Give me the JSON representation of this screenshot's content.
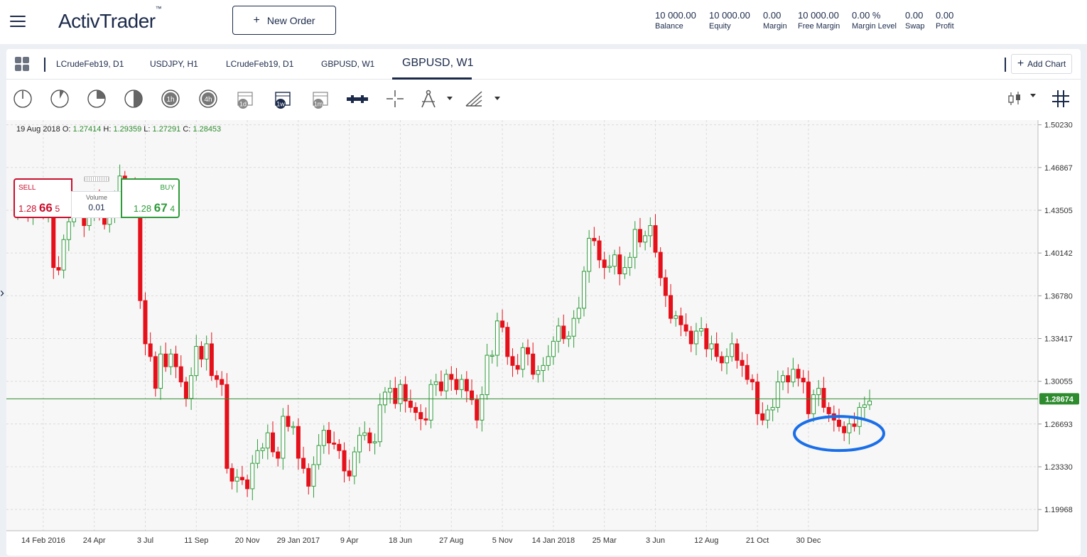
{
  "header": {
    "logo": "ActivTrader",
    "logo_tm": "™",
    "new_order_label": "New Order",
    "stats": [
      {
        "value": "10 000.00",
        "label": "Balance"
      },
      {
        "value": "10 000.00",
        "label": "Equity"
      },
      {
        "value": "0.00",
        "label": "Margin"
      },
      {
        "value": "10 000.00",
        "label": "Free Margin"
      },
      {
        "value": "0.00 %",
        "label": "Margin Level"
      },
      {
        "value": "0.00",
        "label": "Swap"
      },
      {
        "value": "0.00",
        "label": "Profit"
      }
    ]
  },
  "tabs": [
    {
      "label": "LCrudeFeb19, D1"
    },
    {
      "label": "USDJPY, H1"
    },
    {
      "label": "LCrudeFeb19, D1"
    },
    {
      "label": "GBPUSD, W1"
    },
    {
      "label": "GBPUSD, W1",
      "active": true
    }
  ],
  "add_chart_label": "Add Chart",
  "toolbar": {
    "tools": [
      "clock-1-icon",
      "clock-2-icon",
      "clock-3-icon",
      "clock-4-icon",
      "timeframe-1h-icon",
      "timeframe-4h-icon",
      "timeframe-1d-icon",
      "timeframe-1w-icon",
      "timeframe-1m-icon",
      "chart-type-icon",
      "crosshair-icon",
      "compass-draw-icon",
      "fibonacci-icon"
    ],
    "tf_1h": "1h",
    "tf_4h": "4h",
    "tf_1d": "1d",
    "tf_1w": "1w",
    "tf_1m": "1m"
  },
  "ohlc": {
    "date": "19 Aug 2018",
    "o_label": "O:",
    "o": "1.27414",
    "h_label": "H:",
    "h": "1.29359",
    "l_label": "L:",
    "l": "1.27291",
    "c_label": "C:",
    "c": "1.28453"
  },
  "trade": {
    "sell_label": "SELL",
    "sell_big": "1.28",
    "sell_pips": "66",
    "sell_frac": "5",
    "buy_label": "BUY",
    "buy_big": "1.28",
    "buy_pips": "67",
    "buy_frac": "4",
    "volume_label": "Volume",
    "volume_value": "0.01"
  },
  "colors": {
    "up": "#2e9b3a",
    "down": "#e5101a",
    "price_line": "#2e8b2e",
    "highlight_circle": "#1a6fe8",
    "navy": "#1b2a4a"
  },
  "chart_data": {
    "type": "candlestick",
    "symbol": "GBPUSD",
    "timeframe": "W1",
    "current_price": "1.28674",
    "y_ticks": [
      "1.50230",
      "1.46867",
      "1.43505",
      "1.40142",
      "1.36780",
      "1.33417",
      "1.30055",
      "1.26693",
      "1.23330",
      "1.19968"
    ],
    "ylim": [
      1.183,
      1.506
    ],
    "x_tick_labels": [
      "14 Feb 2016",
      "24 Apr",
      "3 Jul",
      "11 Sep",
      "20 Nov",
      "29 Jan 2017",
      "9 Apr",
      "18 Jun",
      "27 Aug",
      "5 Nov",
      "14 Jan 2018",
      "25 Mar",
      "3 Jun",
      "12 Aug",
      "21 Oct",
      "30 Dec"
    ],
    "x_tick_index": [
      5,
      15,
      25,
      35,
      45,
      55,
      65,
      75,
      85,
      95,
      105,
      115,
      125,
      135,
      145,
      155
    ],
    "closes": [
      1.438,
      1.442,
      1.43,
      1.441,
      1.446,
      1.432,
      1.44,
      1.39,
      1.388,
      1.412,
      1.426,
      1.44,
      1.442,
      1.423,
      1.433,
      1.445,
      1.436,
      1.424,
      1.434,
      1.444,
      1.462,
      1.448,
      1.452,
      1.44,
      1.364,
      1.33,
      1.32,
      1.295,
      1.322,
      1.312,
      1.322,
      1.312,
      1.3,
      1.287,
      1.305,
      1.328,
      1.318,
      1.33,
      1.305,
      1.302,
      1.298,
      1.232,
      1.222,
      1.225,
      1.223,
      1.216,
      1.236,
      1.246,
      1.248,
      1.26,
      1.245,
      1.24,
      1.273,
      1.265,
      1.265,
      1.24,
      1.232,
      1.218,
      1.235,
      1.25,
      1.262,
      1.252,
      1.251,
      1.246,
      1.23,
      1.226,
      1.245,
      1.258,
      1.26,
      1.252,
      1.253,
      1.282,
      1.292,
      1.295,
      1.283,
      1.298,
      1.285,
      1.28,
      1.276,
      1.271,
      1.27,
      1.298,
      1.3,
      1.293,
      1.306,
      1.302,
      1.294,
      1.302,
      1.293,
      1.286,
      1.27,
      1.29,
      1.321,
      1.321,
      1.348,
      1.343,
      1.32,
      1.313,
      1.31,
      1.327,
      1.322,
      1.306,
      1.309,
      1.313,
      1.32,
      1.332,
      1.344,
      1.334,
      1.336,
      1.35,
      1.358,
      1.387,
      1.413,
      1.411,
      1.396,
      1.39,
      1.391,
      1.4,
      1.385,
      1.39,
      1.398,
      1.42,
      1.41,
      1.415,
      1.423,
      1.402,
      1.382,
      1.368,
      1.35,
      1.352,
      1.345,
      1.34,
      1.33,
      1.34,
      1.342,
      1.326,
      1.33,
      1.32,
      1.315,
      1.32,
      1.33,
      1.317,
      1.313,
      1.302,
      1.3,
      1.275,
      1.27,
      1.278,
      1.28,
      1.3,
      1.305,
      1.3,
      1.31,
      1.303,
      1.3,
      1.275,
      1.29,
      1.295,
      1.28,
      1.275,
      1.27,
      1.265,
      1.26,
      1.267,
      1.265,
      1.28,
      1.282,
      1.285
    ]
  }
}
